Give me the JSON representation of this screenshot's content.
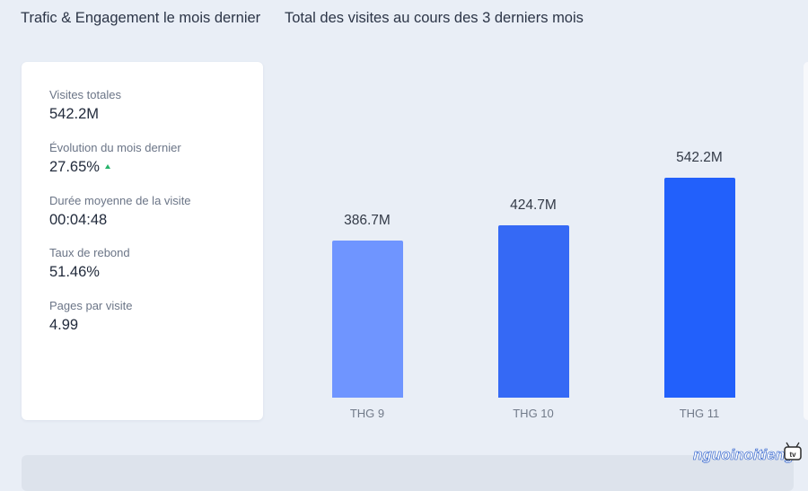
{
  "header": {
    "section_title": "Trafic & Engagement le mois dernier",
    "chart_title": "Total des visites au cours des 3 derniers mois"
  },
  "stats": [
    {
      "label": "Visites totales",
      "value": "542.2M"
    },
    {
      "label": "Évolution du mois dernier",
      "value": "27.65%",
      "trend": "up"
    },
    {
      "label": "Durée moyenne de la visite",
      "value": "00:04:48"
    },
    {
      "label": "Taux de rebond",
      "value": "51.46%"
    },
    {
      "label": "Pages par visite",
      "value": "4.99"
    }
  ],
  "colors": {
    "trend_up": "#27b36a",
    "bar_light": "#6f95ff",
    "bar_mid": "#3569f5",
    "bar_dark": "#2260fb"
  },
  "chart_data": {
    "type": "bar",
    "categories": [
      "THG 9",
      "THG 10",
      "THG 11"
    ],
    "values": [
      386.7,
      424.7,
      542.2
    ],
    "value_labels": [
      "386.7M",
      "424.7M",
      "542.2M"
    ],
    "title": "Total des visites au cours des 3 derniers mois",
    "xlabel": "",
    "ylabel": "",
    "ylim": [
      0,
      542.2
    ],
    "grid": false
  },
  "watermark": {
    "text": "nguoinoitieng",
    "suffix": "tv",
    "icon": "tv-icon"
  }
}
